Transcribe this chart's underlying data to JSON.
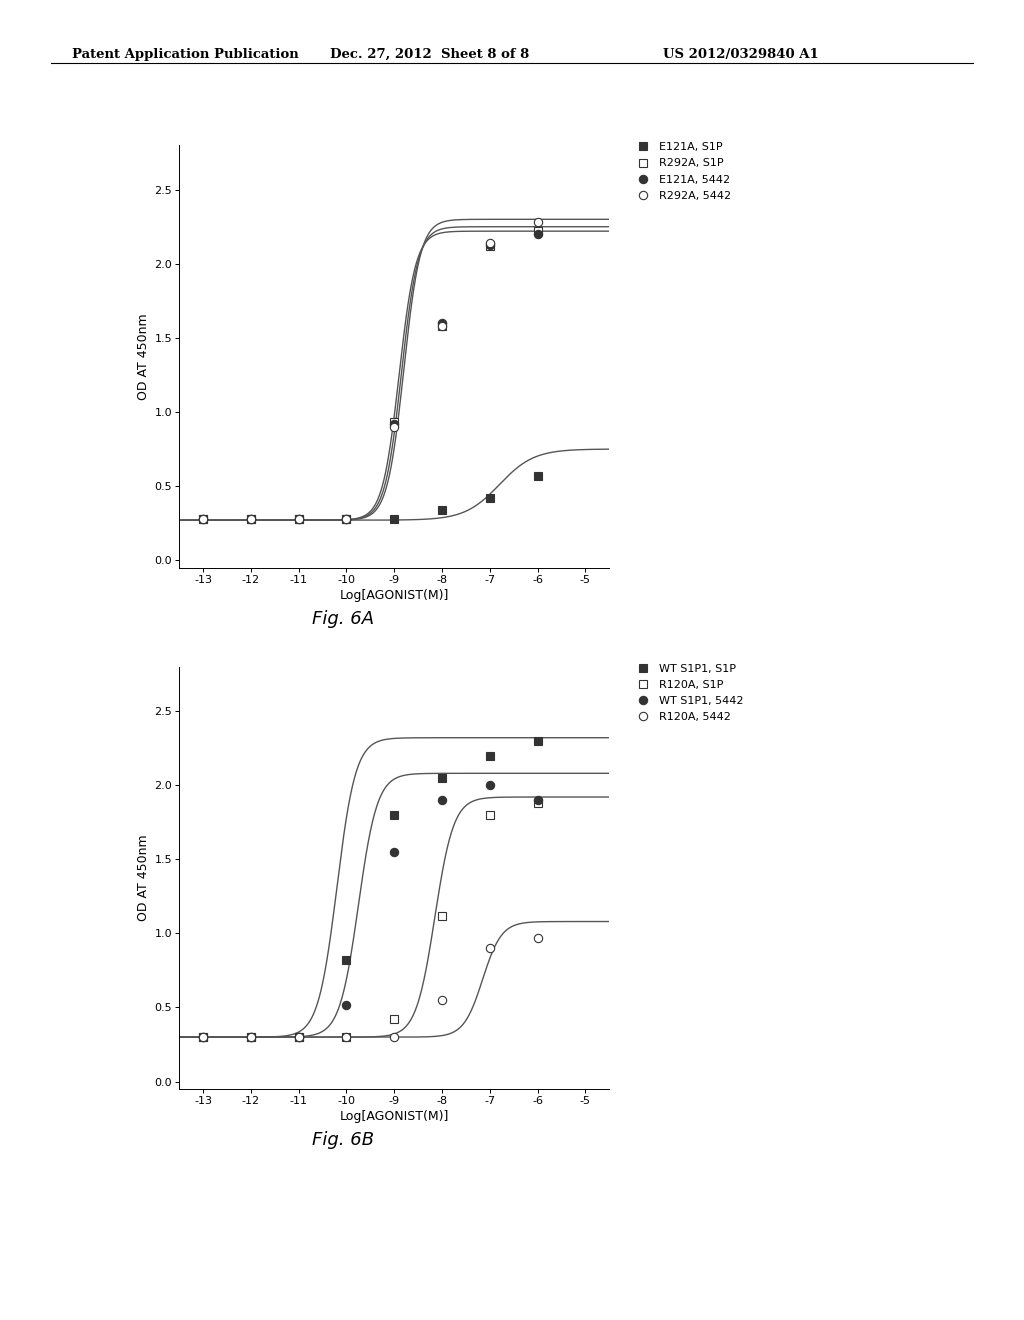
{
  "header_left": "Patent Application Publication",
  "header_mid": "Dec. 27, 2012  Sheet 8 of 8",
  "header_right": "US 2012/0329840 A1",
  "fig6A": {
    "xlabel": "Log[AGONIST(M)]",
    "ylabel": "OD AT 450nm",
    "xlim": [
      -13.5,
      -4.5
    ],
    "ylim": [
      -0.05,
      2.8
    ],
    "xticks": [
      -13,
      -12,
      -11,
      -10,
      -9,
      -8,
      -7,
      -6,
      -5
    ],
    "yticks": [
      0.0,
      0.5,
      1.0,
      1.5,
      2.0,
      2.5
    ],
    "series": [
      {
        "label": "E121A, S1P",
        "marker": "s",
        "filled": true,
        "x_data": [
          -13,
          -12,
          -11,
          -10,
          -9,
          -8,
          -7,
          -6
        ],
        "y_data": [
          0.28,
          0.28,
          0.28,
          0.28,
          0.28,
          0.34,
          0.42,
          0.57
        ],
        "ec50": -6.8,
        "hill": 1.2,
        "bottom": 0.27,
        "top": 0.75
      },
      {
        "label": "R292A, S1P",
        "marker": "s",
        "filled": false,
        "x_data": [
          -13,
          -12,
          -11,
          -10,
          -9,
          -8,
          -7,
          -6
        ],
        "y_data": [
          0.28,
          0.28,
          0.28,
          0.28,
          0.93,
          1.58,
          2.12,
          2.22
        ],
        "ec50": -8.85,
        "hill": 2.5,
        "bottom": 0.27,
        "top": 2.25
      },
      {
        "label": "E121A, 5442",
        "marker": "o",
        "filled": true,
        "x_data": [
          -13,
          -12,
          -11,
          -10,
          -9,
          -8,
          -7,
          -6
        ],
        "y_data": [
          0.28,
          0.28,
          0.28,
          0.28,
          0.92,
          1.6,
          2.13,
          2.2
        ],
        "ec50": -8.9,
        "hill": 2.5,
        "bottom": 0.27,
        "top": 2.22
      },
      {
        "label": "R292A, 5442",
        "marker": "o",
        "filled": false,
        "x_data": [
          -13,
          -12,
          -11,
          -10,
          -9,
          -8,
          -7,
          -6
        ],
        "y_data": [
          0.28,
          0.28,
          0.28,
          0.28,
          0.9,
          1.58,
          2.14,
          2.28
        ],
        "ec50": -8.8,
        "hill": 2.5,
        "bottom": 0.27,
        "top": 2.3
      }
    ]
  },
  "fig6B": {
    "xlabel": "Log[AGONIST(M)]",
    "ylabel": "OD AT 450nm",
    "xlim": [
      -13.5,
      -4.5
    ],
    "ylim": [
      -0.05,
      2.8
    ],
    "xticks": [
      -13,
      -12,
      -11,
      -10,
      -9,
      -8,
      -7,
      -6,
      -5
    ],
    "yticks": [
      0.0,
      0.5,
      1.0,
      1.5,
      2.0,
      2.5
    ],
    "series": [
      {
        "label": "WT S1P1, S1P",
        "marker": "s",
        "filled": true,
        "x_data": [
          -13,
          -12,
          -11,
          -10,
          -9,
          -8,
          -7,
          -6
        ],
        "y_data": [
          0.3,
          0.3,
          0.3,
          0.82,
          1.8,
          2.05,
          2.2,
          2.3
        ],
        "ec50": -10.2,
        "hill": 2.2,
        "bottom": 0.3,
        "top": 2.32
      },
      {
        "label": "R120A, S1P",
        "marker": "s",
        "filled": false,
        "x_data": [
          -13,
          -12,
          -11,
          -10,
          -9,
          -8,
          -7,
          -6
        ],
        "y_data": [
          0.3,
          0.3,
          0.3,
          0.3,
          0.42,
          1.12,
          1.8,
          1.88
        ],
        "ec50": -8.15,
        "hill": 2.2,
        "bottom": 0.3,
        "top": 1.92
      },
      {
        "label": "WT S1P1, 5442",
        "marker": "o",
        "filled": true,
        "x_data": [
          -13,
          -12,
          -11,
          -10,
          -9,
          -8,
          -7,
          -6
        ],
        "y_data": [
          0.3,
          0.3,
          0.3,
          0.52,
          1.55,
          1.9,
          2.0,
          1.9
        ],
        "ec50": -9.75,
        "hill": 2.2,
        "bottom": 0.3,
        "top": 2.08
      },
      {
        "label": "R120A, 5442",
        "marker": "o",
        "filled": false,
        "x_data": [
          -13,
          -12,
          -11,
          -10,
          -9,
          -8,
          -7,
          -6
        ],
        "y_data": [
          0.3,
          0.3,
          0.3,
          0.3,
          0.3,
          0.55,
          0.9,
          0.97
        ],
        "ec50": -7.15,
        "hill": 2.2,
        "bottom": 0.3,
        "top": 1.08
      }
    ]
  }
}
